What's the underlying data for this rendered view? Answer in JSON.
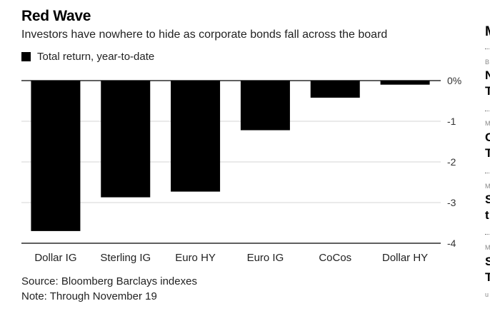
{
  "chart_data": {
    "type": "bar",
    "title": "Red Wave",
    "subtitle": "Investors have nowhere to hide as corporate bonds fall across the board",
    "legend": [
      {
        "name": "Total return, year-to-date",
        "color": "#000000"
      }
    ],
    "categories": [
      "Dollar IG",
      "Sterling IG",
      "Euro HY",
      "Euro IG",
      "CoCos",
      "Dollar HY"
    ],
    "series": [
      {
        "name": "Total return, year-to-date",
        "values": [
          -3.7,
          -2.87,
          -2.73,
          -1.22,
          -0.42,
          -0.1
        ]
      }
    ],
    "ylim": [
      -4,
      0
    ],
    "yticks": [
      0,
      -1,
      -2,
      -3,
      -4
    ],
    "ytick_labels": [
      "0%",
      "-1",
      "-2",
      "-3",
      "-4"
    ],
    "y_axis_position": "right",
    "grid": true,
    "legend_placement": "top-left",
    "bar_color": "#000000",
    "source": "Source: Bloomberg Barclays indexes",
    "note": "Note: Through November 19"
  },
  "sidebar": {
    "heading": "M",
    "items": [
      {
        "small": "B",
        "big": [
          "N",
          "T"
        ]
      },
      {
        "small": "M",
        "big": [
          "C",
          "T"
        ]
      },
      {
        "small": "M",
        "big": [
          "S",
          "t"
        ]
      },
      {
        "small": "M",
        "big": [
          "S",
          "T"
        ]
      },
      {
        "small": "u",
        "big": []
      }
    ]
  }
}
